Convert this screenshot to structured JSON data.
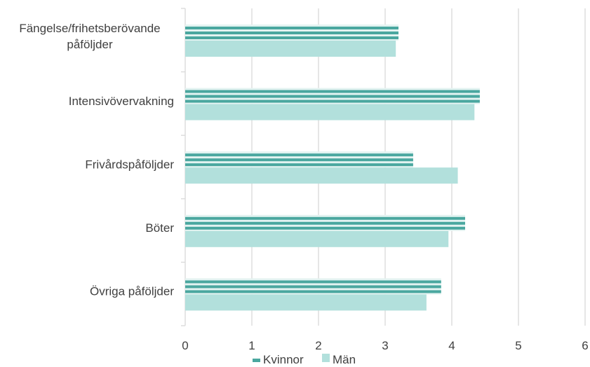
{
  "chart_data": {
    "type": "bar",
    "orientation": "horizontal",
    "categories": [
      [
        "Fängelse/frihetsberövande",
        "påföljder"
      ],
      [
        "Intensivövervakning"
      ],
      [
        "Frivårdspåföljder"
      ],
      [
        "Böter"
      ],
      [
        "Övriga påföljder"
      ]
    ],
    "series": [
      {
        "name": "Kvinnor",
        "values": [
          3.2,
          4.42,
          3.42,
          4.2,
          3.84
        ],
        "color": "#4aa79f",
        "style": "striped"
      },
      {
        "name": "Män",
        "values": [
          3.16,
          4.34,
          4.09,
          3.95,
          3.62
        ],
        "color": "#b2e0dc",
        "style": "solid"
      }
    ],
    "xlim": [
      0,
      6
    ],
    "xticks": [
      "0",
      "1",
      "2",
      "3",
      "4",
      "5",
      "6"
    ],
    "grid": true,
    "legend": "bottom"
  }
}
